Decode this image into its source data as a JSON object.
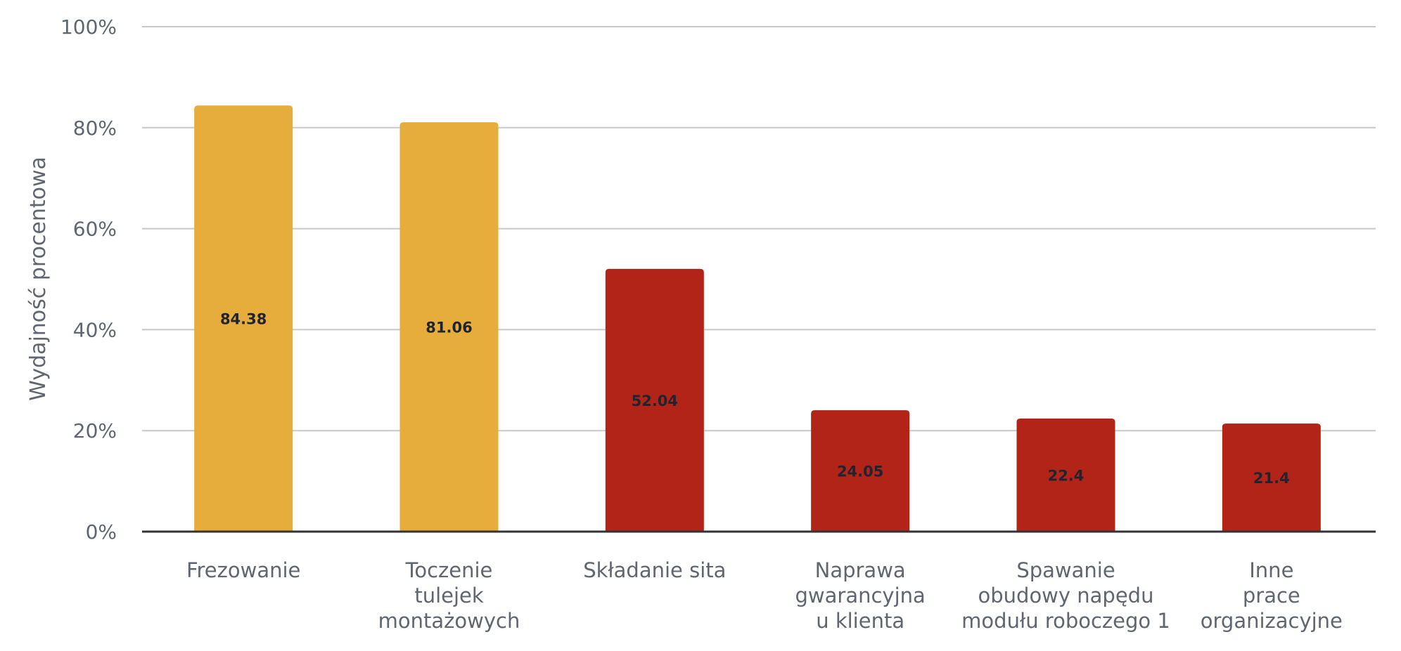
{
  "chart_data": {
    "type": "bar",
    "title": "",
    "xlabel": "",
    "ylabel": "Wydajność procentowa",
    "categories": [
      [
        "Frezowanie"
      ],
      [
        "Toczenie",
        "tulejek",
        "montażowych"
      ],
      [
        "Składanie sita"
      ],
      [
        "Naprawa",
        "gwarancyjna",
        "u klienta"
      ],
      [
        "Spawanie",
        "obudowy napędu",
        "modułu roboczego 1"
      ],
      [
        "Inne",
        "prace",
        "organizacyjne"
      ]
    ],
    "values": [
      84.38,
      81.06,
      52.04,
      24.05,
      22.4,
      21.4
    ],
    "data_labels": [
      "84.38",
      "81.06",
      "52.04",
      "24.05",
      "22.4",
      "21.4"
    ],
    "bar_colors": [
      "#e6ad3c",
      "#e6ad3c",
      "#b22418",
      "#b22418",
      "#b22418",
      "#b22418"
    ],
    "ylim": [
      0,
      100
    ],
    "yticks": [
      0,
      20,
      40,
      60,
      80,
      100
    ],
    "ytick_labels": [
      "0%",
      "20%",
      "40%",
      "60%",
      "80%",
      "100%"
    ],
    "grid": true,
    "legend": "none"
  },
  "colors": {
    "gridline": "#c8c8c8",
    "axis": "#333333",
    "text": "#5f6670",
    "data_label": "#1f2430"
  }
}
